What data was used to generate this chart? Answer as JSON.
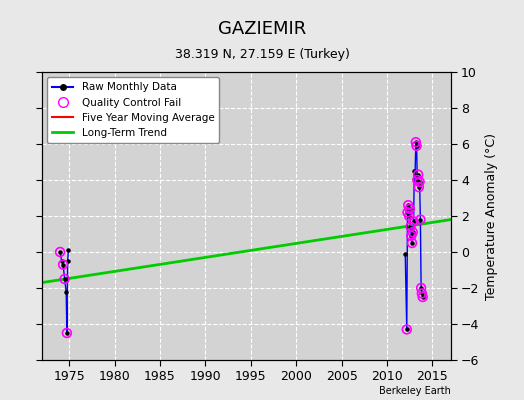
{
  "title": "GAZIEMIR",
  "subtitle": "38.319 N, 27.159 E (Turkey)",
  "ylabel": "Temperature Anomaly (°C)",
  "attribution": "Berkeley Earth",
  "xlim": [
    1972,
    2017
  ],
  "ylim": [
    -6,
    10
  ],
  "yticks": [
    -6,
    -4,
    -2,
    0,
    2,
    4,
    6,
    8,
    10
  ],
  "xticks": [
    1975,
    1980,
    1985,
    1990,
    1995,
    2000,
    2005,
    2010,
    2015
  ],
  "bg_color": "#e8e8e8",
  "plot_bg_color": "#d3d3d3",
  "raw_data_1974": [
    [
      1974.0,
      0.0
    ],
    [
      1974.17,
      -0.5
    ],
    [
      1974.33,
      -0.7
    ],
    [
      1974.5,
      -1.5
    ],
    [
      1974.67,
      -2.2
    ],
    [
      1974.75,
      -4.5
    ],
    [
      1974.83,
      -0.5
    ],
    [
      1974.92,
      0.1
    ]
  ],
  "raw_data_2012": [
    [
      2012.0,
      -0.1
    ],
    [
      2012.17,
      -4.3
    ],
    [
      2012.25,
      2.2
    ],
    [
      2012.33,
      2.6
    ],
    [
      2012.42,
      2.0
    ],
    [
      2012.5,
      2.4
    ],
    [
      2012.58,
      1.4
    ],
    [
      2012.67,
      0.9
    ],
    [
      2012.75,
      0.5
    ],
    [
      2012.83,
      1.1
    ],
    [
      2012.92,
      1.7
    ],
    [
      2013.0,
      4.5
    ],
    [
      2013.08,
      4.3
    ],
    [
      2013.17,
      6.1
    ],
    [
      2013.25,
      5.9
    ],
    [
      2013.33,
      4.0
    ],
    [
      2013.42,
      4.3
    ],
    [
      2013.5,
      3.6
    ],
    [
      2013.58,
      3.9
    ],
    [
      2013.67,
      1.8
    ],
    [
      2013.75,
      -2.0
    ],
    [
      2013.83,
      -2.3
    ],
    [
      2013.92,
      -2.5
    ]
  ],
  "qc_fail_1974": [
    [
      1974.0,
      0.0
    ],
    [
      1974.33,
      -0.7
    ],
    [
      1974.5,
      -1.5
    ],
    [
      1974.75,
      -4.5
    ]
  ],
  "qc_fail_2012": [
    [
      2012.17,
      -4.3
    ],
    [
      2012.25,
      2.2
    ],
    [
      2012.33,
      2.6
    ],
    [
      2012.42,
      2.0
    ],
    [
      2012.5,
      2.4
    ],
    [
      2012.58,
      1.4
    ],
    [
      2012.67,
      0.9
    ],
    [
      2012.75,
      0.5
    ],
    [
      2012.83,
      1.1
    ],
    [
      2012.92,
      1.7
    ],
    [
      2013.17,
      6.1
    ],
    [
      2013.25,
      5.9
    ],
    [
      2013.33,
      4.0
    ],
    [
      2013.42,
      4.3
    ],
    [
      2013.5,
      3.6
    ],
    [
      2013.58,
      3.9
    ],
    [
      2013.67,
      1.8
    ],
    [
      2013.75,
      -2.0
    ],
    [
      2013.83,
      -2.3
    ],
    [
      2013.92,
      -2.5
    ]
  ],
  "trend_x": [
    1972,
    2017
  ],
  "trend_y": [
    -1.7,
    1.8
  ],
  "raw_color": "#0000ff",
  "qc_color": "#ff00ff",
  "trend_color": "#00cc00",
  "mavg_color": "#ff0000"
}
